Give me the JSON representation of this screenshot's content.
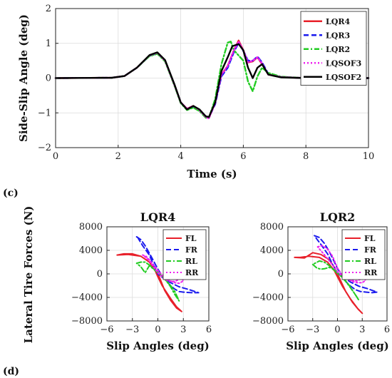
{
  "panel_labels": {
    "upper": "(c)",
    "lower": "(d)"
  },
  "chart_data": [
    {
      "type": "line",
      "title": "",
      "xlabel": "Time (s)",
      "ylabel": "Side-Slip Angle (deg)",
      "xlim": [
        0,
        10
      ],
      "ylim": [
        -2,
        2
      ],
      "xticks": [
        0,
        2,
        4,
        6,
        8,
        10
      ],
      "yticks": [
        -2,
        -1,
        0,
        1,
        2
      ],
      "grid": true,
      "legend_position": "top-right",
      "series": [
        {
          "name": "LQR4",
          "color": "#e8202a",
          "dash": "solid",
          "x": [
            0,
            1.8,
            2.2,
            2.6,
            3.0,
            3.25,
            3.5,
            3.8,
            4.0,
            4.2,
            4.4,
            4.6,
            4.8,
            4.9,
            5.1,
            5.3,
            5.5,
            5.7,
            5.85,
            6.0,
            6.15,
            6.3,
            6.45,
            6.6,
            6.8,
            7.2,
            8.0,
            10
          ],
          "y": [
            0,
            0.01,
            0.06,
            0.3,
            0.65,
            0.72,
            0.5,
            -0.2,
            -0.7,
            -0.88,
            -0.8,
            -0.92,
            -1.12,
            -1.15,
            -0.7,
            0.1,
            0.35,
            0.8,
            1.08,
            0.8,
            0.45,
            0.48,
            0.6,
            0.4,
            0.1,
            0.03,
            0,
            0
          ]
        },
        {
          "name": "LQR3",
          "color": "#1a1aee",
          "dash": "dash",
          "x": [
            0,
            1.8,
            2.2,
            2.6,
            3.0,
            3.25,
            3.5,
            3.8,
            4.0,
            4.2,
            4.4,
            4.6,
            4.8,
            4.9,
            5.1,
            5.3,
            5.5,
            5.7,
            5.85,
            6.0,
            6.15,
            6.3,
            6.45,
            6.6,
            6.8,
            7.2,
            8.0,
            10
          ],
          "y": [
            0,
            0.01,
            0.06,
            0.3,
            0.64,
            0.71,
            0.5,
            -0.2,
            -0.7,
            -0.9,
            -0.82,
            -0.93,
            -1.1,
            -1.13,
            -0.75,
            0.05,
            0.3,
            0.75,
            1.02,
            0.78,
            0.5,
            0.5,
            0.62,
            0.45,
            0.12,
            0.03,
            0,
            0
          ]
        },
        {
          "name": "LQR2",
          "color": "#22cc22",
          "dash": "dashdot",
          "x": [
            0,
            1.8,
            2.2,
            2.6,
            3.0,
            3.25,
            3.5,
            3.8,
            4.0,
            4.2,
            4.4,
            4.6,
            4.8,
            4.9,
            5.1,
            5.3,
            5.5,
            5.6,
            5.7,
            5.85,
            6.0,
            6.15,
            6.3,
            6.45,
            6.6,
            6.8,
            7.2,
            8.0,
            10
          ],
          "y": [
            0,
            0.01,
            0.06,
            0.3,
            0.63,
            0.7,
            0.48,
            -0.22,
            -0.72,
            -0.92,
            -0.85,
            -0.95,
            -1.14,
            -1.15,
            -0.6,
            0.4,
            1.02,
            1.05,
            0.8,
            0.65,
            0.5,
            -0.1,
            -0.38,
            0.05,
            0.3,
            0.15,
            0.04,
            0,
            0
          ]
        },
        {
          "name": "LQSOF3",
          "color": "#ee22ee",
          "dash": "dot",
          "x": [
            0,
            1.8,
            2.2,
            2.6,
            3.0,
            3.25,
            3.5,
            3.8,
            4.0,
            4.2,
            4.4,
            4.6,
            4.8,
            4.9,
            5.1,
            5.3,
            5.5,
            5.7,
            5.85,
            6.0,
            6.15,
            6.3,
            6.45,
            6.6,
            6.8,
            7.2,
            8.0,
            10
          ],
          "y": [
            0,
            0.01,
            0.06,
            0.3,
            0.65,
            0.73,
            0.5,
            -0.2,
            -0.7,
            -0.88,
            -0.8,
            -0.92,
            -1.12,
            -1.16,
            -0.72,
            0.1,
            0.35,
            0.8,
            1.05,
            0.8,
            0.45,
            0.5,
            0.6,
            0.42,
            0.1,
            0.03,
            0,
            0
          ]
        },
        {
          "name": "LQSOF2",
          "color": "#000000",
          "dash": "solid",
          "x": [
            0,
            1.8,
            2.2,
            2.6,
            3.0,
            3.25,
            3.5,
            3.8,
            4.0,
            4.2,
            4.4,
            4.6,
            4.8,
            4.9,
            5.1,
            5.3,
            5.5,
            5.65,
            5.85,
            6.0,
            6.15,
            6.3,
            6.45,
            6.6,
            6.8,
            7.2,
            8.0,
            10
          ],
          "y": [
            0,
            0.01,
            0.06,
            0.3,
            0.66,
            0.74,
            0.52,
            -0.18,
            -0.7,
            -0.9,
            -0.8,
            -0.9,
            -1.1,
            -1.12,
            -0.7,
            0.2,
            0.6,
            0.92,
            0.98,
            0.8,
            0.3,
            0.0,
            0.3,
            0.4,
            0.1,
            0.02,
            0,
            0
          ]
        }
      ]
    },
    {
      "type": "line",
      "title": "LQR4",
      "xlabel": "Slip Angles (deg)",
      "ylabel": "Lateral Tire Forces (N)",
      "xlim": [
        -6,
        6
      ],
      "ylim": [
        -8000,
        8000
      ],
      "xticks": [
        -6,
        -3,
        0,
        3,
        6
      ],
      "yticks": [
        -8000,
        -4000,
        0,
        4000,
        8000
      ],
      "grid": true,
      "legend_position": "top-right",
      "series": [
        {
          "name": "FL",
          "color": "#e8202a",
          "dash": "solid",
          "x": [
            -4.8,
            -4.0,
            -3.0,
            -2.0,
            -1.0,
            -0.3,
            0,
            0.3,
            0.8,
            1.5,
            2.2,
            2.8,
            2.2,
            1.5,
            0.5,
            0,
            -0.3,
            -1.0,
            -2.0,
            -3.5,
            -4.8
          ],
          "y": [
            3200,
            3400,
            3400,
            3000,
            2000,
            800,
            0,
            -1000,
            -2800,
            -4500,
            -5800,
            -6400,
            -5600,
            -4200,
            -2000,
            -500,
            500,
            2000,
            3000,
            3300,
            3200
          ]
        },
        {
          "name": "FR",
          "color": "#1a1aee",
          "dash": "dash",
          "x": [
            -2.5,
            -2.0,
            -1.5,
            -1.0,
            -0.5,
            0,
            0.5,
            1.0,
            1.5,
            2.0,
            2.5,
            3.0,
            4.0,
            4.8,
            3.5,
            2.5,
            1.5,
            0.5,
            0,
            -0.5,
            -1.0,
            -1.8,
            -2.3
          ],
          "y": [
            6300,
            5800,
            4800,
            3500,
            2200,
            800,
            -300,
            -1200,
            -2000,
            -2600,
            -3000,
            -3100,
            -3200,
            -3200,
            -2600,
            -2200,
            -1500,
            -600,
            0,
            1500,
            3200,
            4800,
            6000
          ]
        },
        {
          "name": "RL",
          "color": "#22cc22",
          "dash": "dashdot",
          "x": [
            -2.5,
            -2.0,
            -1.5,
            -1.0,
            -0.5,
            0,
            0.5,
            1.0,
            1.5,
            2.0,
            2.5,
            2.0,
            1.5,
            1.0,
            0.5,
            0,
            -0.5,
            -1.0,
            -1.5,
            -2.0,
            -2.5
          ],
          "y": [
            1800,
            2000,
            2000,
            1500,
            900,
            300,
            -400,
            -1200,
            -2000,
            -3000,
            -4600,
            -3500,
            -2200,
            -1200,
            -400,
            200,
            800,
            1400,
            200,
            1200,
            1800
          ]
        },
        {
          "name": "RR",
          "color": "#ee22ee",
          "dash": "dot",
          "x": [
            -1.8,
            -1.4,
            -1.0,
            -0.5,
            0,
            0.5,
            1.0,
            1.5,
            2.0,
            2.5,
            3.0,
            2.8,
            2.0,
            1.2,
            0.5,
            0,
            -0.5,
            -1.0,
            -1.5,
            -1.8
          ],
          "y": [
            3200,
            3000,
            2400,
            1500,
            600,
            -200,
            -800,
            -1200,
            -1500,
            -1600,
            -1200,
            -700,
            -1300,
            -1200,
            -600,
            200,
            1200,
            2200,
            2900,
            3200
          ]
        }
      ]
    },
    {
      "type": "line",
      "title": "LQR2",
      "xlabel": "Slip Angles (deg)",
      "ylabel": "",
      "xlim": [
        -6,
        6
      ],
      "ylim": [
        -8000,
        8000
      ],
      "xticks": [
        -6,
        -3,
        0,
        3,
        6
      ],
      "yticks": [
        -8000,
        -4000,
        0,
        4000,
        8000
      ],
      "grid": true,
      "legend_position": "top-right",
      "series": [
        {
          "name": "FL",
          "color": "#e8202a",
          "dash": "solid",
          "x": [
            -5.2,
            -4.0,
            -3.0,
            -2.0,
            -1.0,
            -0.3,
            0,
            0.4,
            1.0,
            1.8,
            2.5,
            3.0,
            2.4,
            1.6,
            0.6,
            0,
            -0.4,
            -1.2,
            -2.2,
            -3.5,
            -4.5,
            -5.2
          ],
          "y": [
            2800,
            2700,
            3600,
            3300,
            2400,
            1000,
            0,
            -1200,
            -3000,
            -4800,
            -6000,
            -6700,
            -5800,
            -4300,
            -2100,
            -500,
            600,
            2000,
            2800,
            3000,
            2800,
            2800
          ]
        },
        {
          "name": "FR",
          "color": "#1a1aee",
          "dash": "dash",
          "x": [
            -2.8,
            -2.2,
            -1.6,
            -1.0,
            -0.5,
            0,
            0.5,
            1.0,
            1.6,
            2.2,
            2.8,
            3.5,
            4.2,
            4.8,
            3.6,
            2.6,
            1.6,
            0.6,
            0,
            -0.6,
            -1.2,
            -2.0,
            -2.6
          ],
          "y": [
            6500,
            6200,
            5200,
            3800,
            2400,
            900,
            -300,
            -1300,
            -2100,
            -2700,
            -3000,
            -3100,
            -3200,
            -3100,
            -2500,
            -2100,
            -1400,
            -500,
            100,
            1600,
            3400,
            5000,
            6100
          ]
        },
        {
          "name": "RL",
          "color": "#22cc22",
          "dash": "dashdot",
          "x": [
            -3.0,
            -2.5,
            -2.0,
            -1.5,
            -1.0,
            -0.5,
            0,
            0.5,
            1.0,
            1.5,
            2.0,
            2.6,
            2.2,
            1.6,
            1.0,
            0.5,
            0,
            -0.5,
            -1.0,
            -1.6,
            -2.2,
            -3.0
          ],
          "y": [
            1600,
            1000,
            800,
            900,
            1100,
            800,
            300,
            -400,
            -1200,
            -2100,
            -3200,
            -4500,
            -3600,
            -2400,
            -1300,
            -500,
            100,
            700,
            1400,
            2000,
            2200,
            1600
          ]
        },
        {
          "name": "RR",
          "color": "#ee22ee",
          "dash": "dot",
          "x": [
            -2.4,
            -1.8,
            -1.2,
            -0.6,
            0,
            0.6,
            1.2,
            1.8,
            2.4,
            3.0,
            3.4,
            3.2,
            2.4,
            1.6,
            0.8,
            0,
            -0.6,
            -1.2,
            -1.8,
            -2.4
          ],
          "y": [
            4600,
            4800,
            4200,
            3000,
            1000,
            -200,
            -900,
            -1300,
            -1500,
            -1500,
            -1100,
            -600,
            -1200,
            -1100,
            -600,
            300,
            1500,
            2600,
            3600,
            4600
          ]
        }
      ]
    }
  ]
}
